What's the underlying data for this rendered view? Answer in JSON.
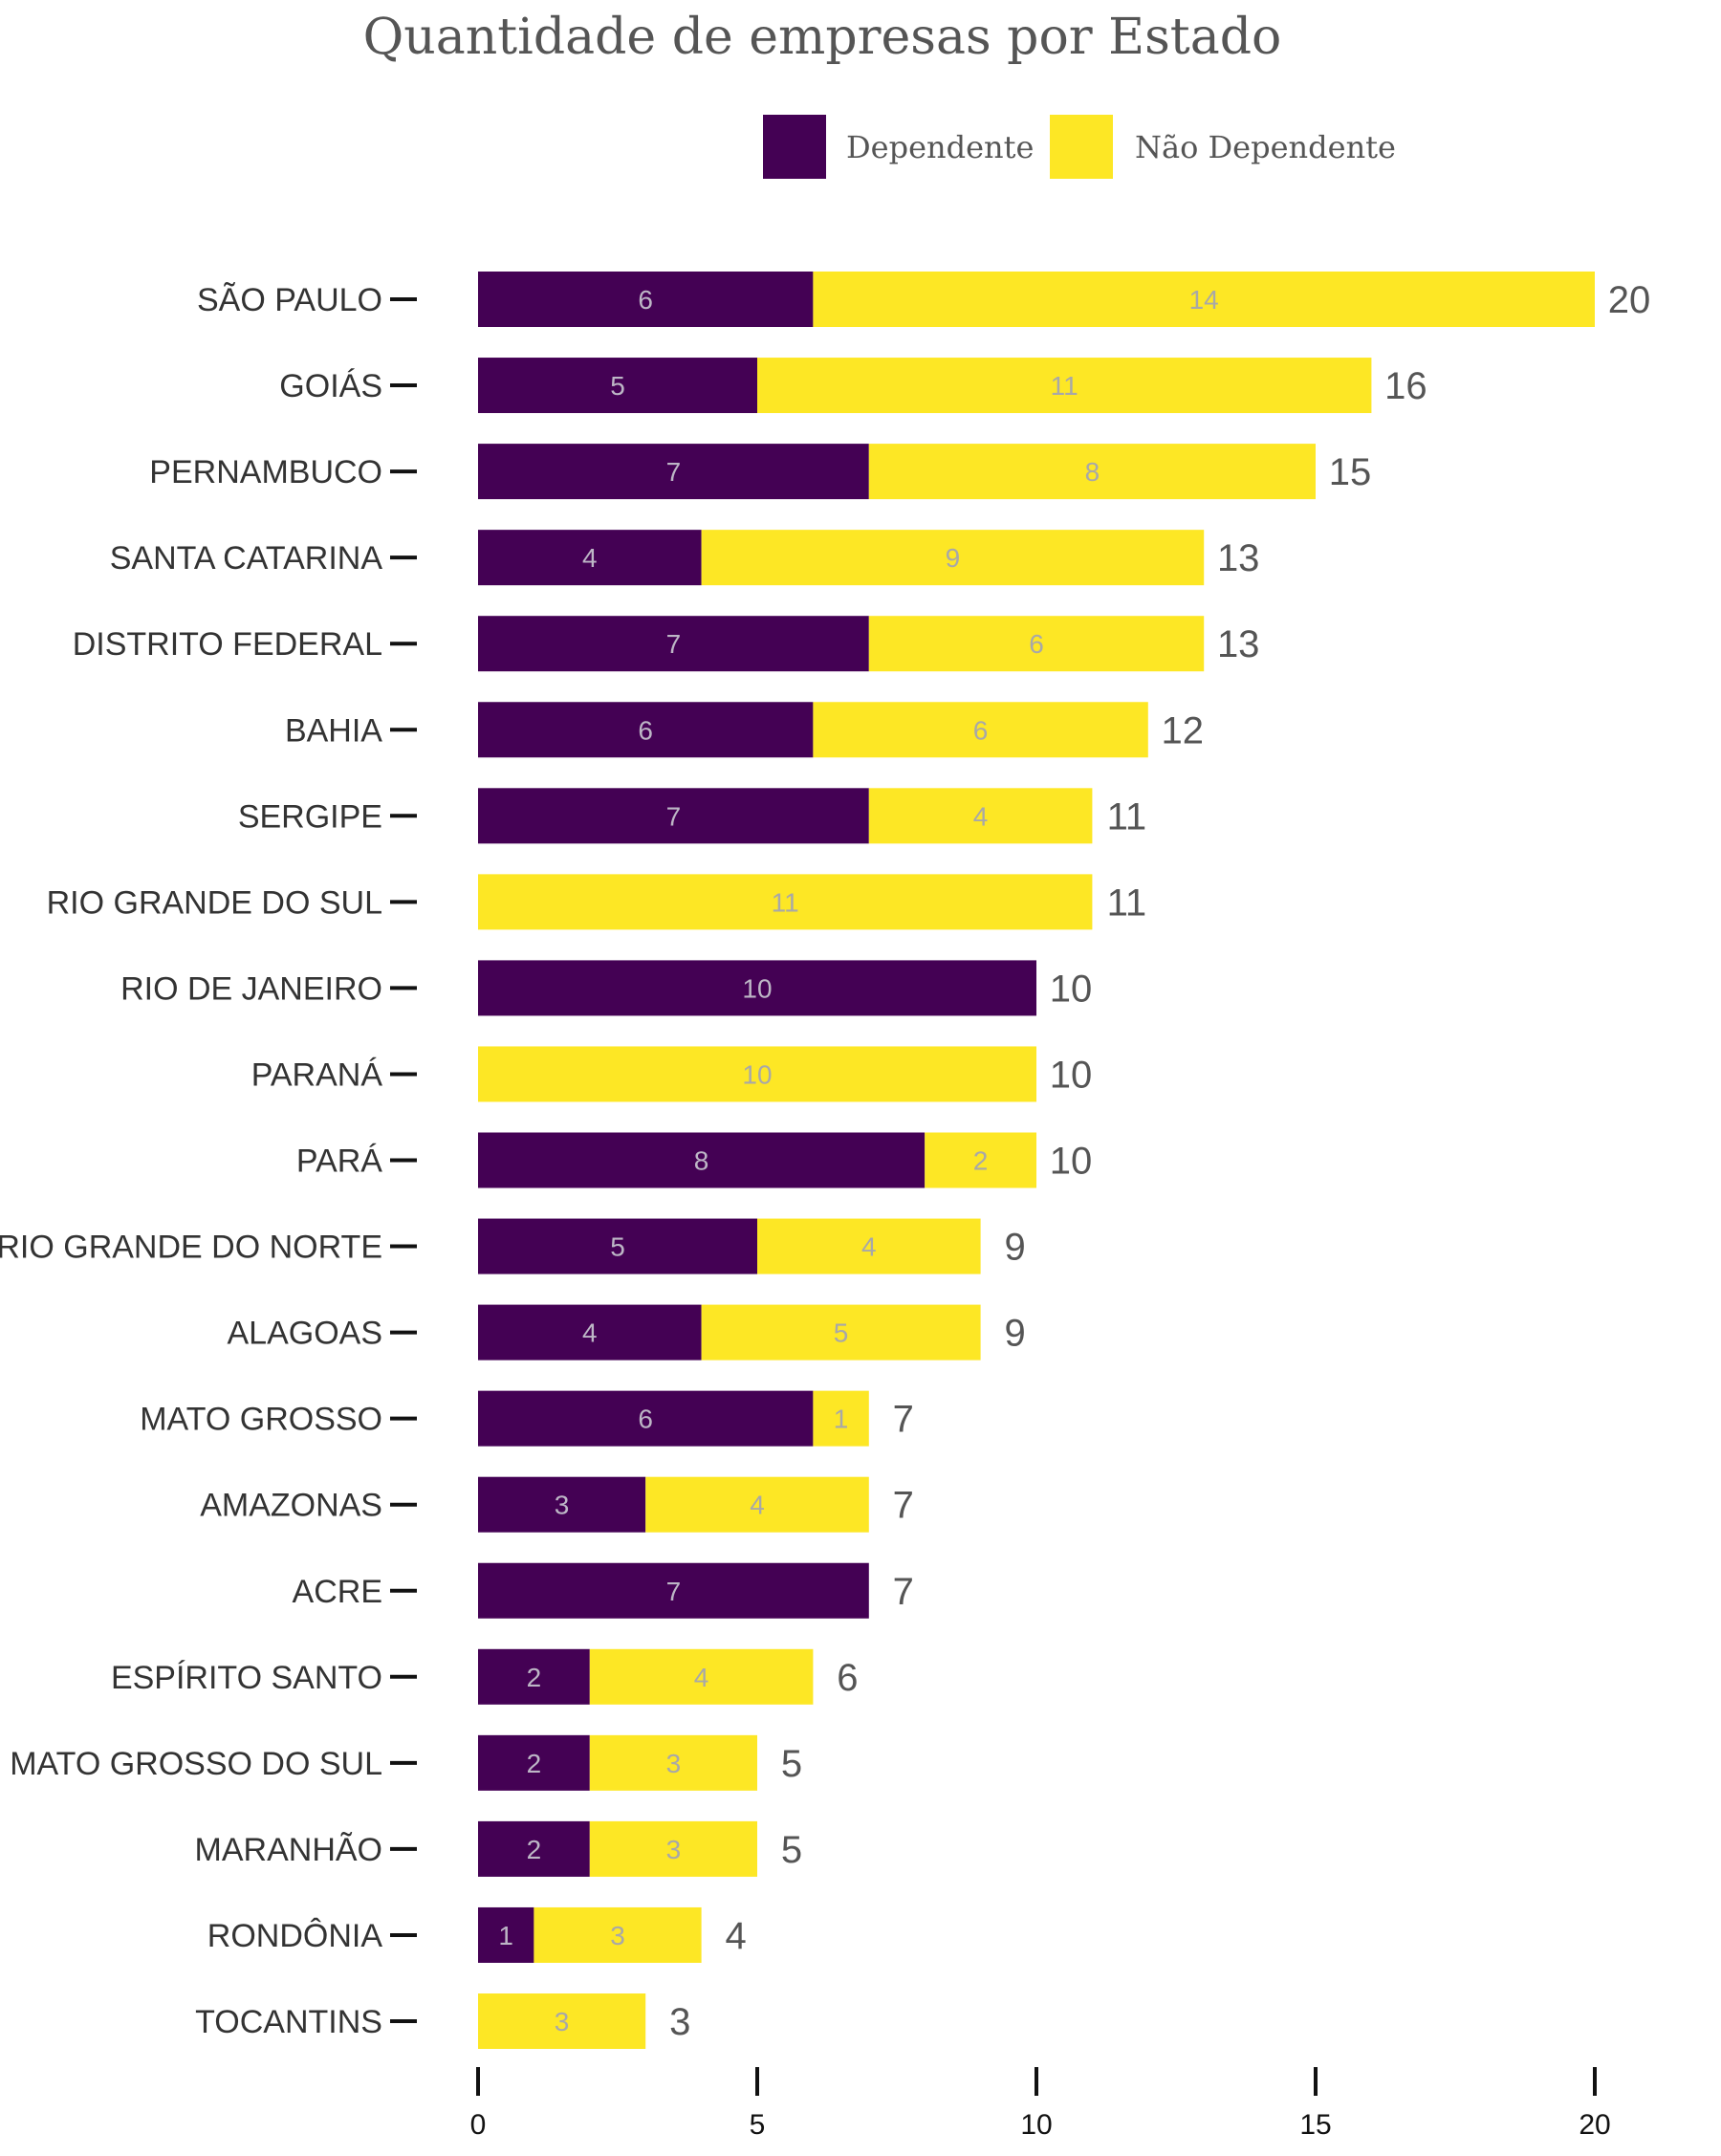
{
  "chart_data": {
    "type": "bar",
    "orientation": "horizontal",
    "stacked": true,
    "title": "Quantidade de empresas por Estado",
    "categories": [
      "SÃO PAULO",
      "GOIÁS",
      "PERNAMBUCO",
      "SANTA CATARINA",
      "DISTRITO FEDERAL",
      "BAHIA",
      "SERGIPE",
      "RIO GRANDE DO SUL",
      "RIO DE JANEIRO",
      "PARANÁ",
      "PARÁ",
      "RIO GRANDE DO NORTE",
      "ALAGOAS",
      "MATO GROSSO",
      "AMAZONAS",
      "ACRE",
      "ESPÍRITO SANTO",
      "MATO GROSSO DO SUL",
      "MARANHÃO",
      "RONDÔNIA",
      "TOCANTINS"
    ],
    "series": [
      {
        "name": "Dependente",
        "color": "#440154",
        "values": [
          6,
          5,
          7,
          4,
          7,
          6,
          7,
          0,
          10,
          0,
          8,
          5,
          4,
          6,
          3,
          7,
          2,
          2,
          2,
          1,
          0
        ]
      },
      {
        "name": "Não Dependente",
        "color": "#FDE725",
        "values": [
          14,
          11,
          8,
          9,
          6,
          6,
          4,
          11,
          0,
          10,
          2,
          4,
          5,
          1,
          4,
          0,
          4,
          3,
          3,
          3,
          3
        ]
      }
    ],
    "totals": [
      20,
      16,
      15,
      13,
      13,
      12,
      11,
      11,
      10,
      10,
      10,
      9,
      9,
      7,
      7,
      7,
      6,
      5,
      5,
      4,
      3
    ],
    "xlim": [
      0,
      20
    ],
    "xticks": [
      0,
      5,
      10,
      15,
      20
    ],
    "grid": false,
    "legend_position": "top"
  }
}
